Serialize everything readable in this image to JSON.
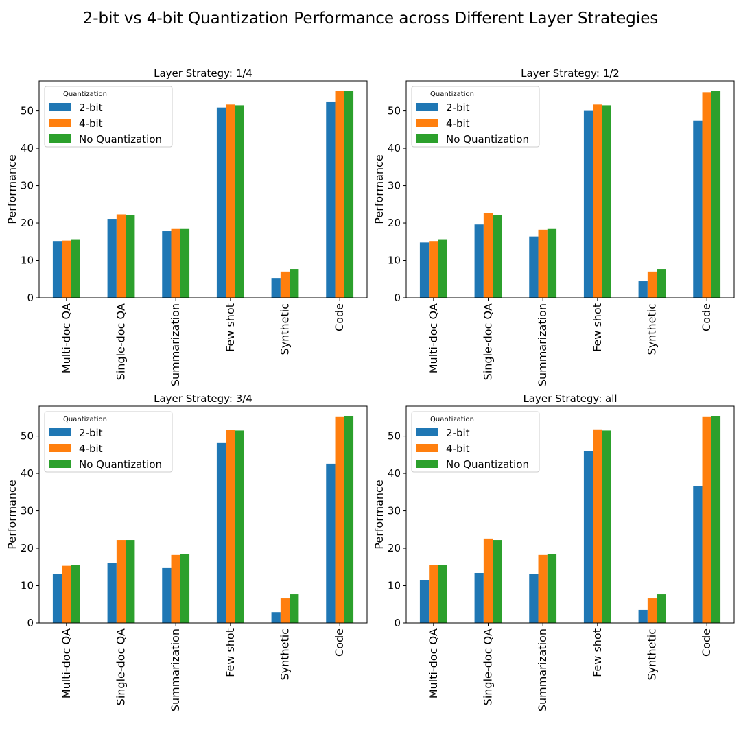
{
  "figure": {
    "title": "2-bit vs 4-bit Quantization Performance across Different Layer Strategies"
  },
  "colors": {
    "2-bit": "#1f77b4",
    "4-bit": "#ff7f0e",
    "No Quantization": "#2ca02c"
  },
  "chart_data": [
    {
      "type": "bar",
      "title": "Layer Strategy: 1/4",
      "xlabel": "",
      "ylabel": "Performance",
      "ylim": [
        0,
        58
      ],
      "yticks": [
        0,
        10,
        20,
        30,
        40,
        50
      ],
      "legend": {
        "title": "Quantization",
        "placement": "top-left"
      },
      "categories": [
        "Multi-doc QA",
        "Single-doc QA",
        "Summarization",
        "Few shot",
        "Synthetic",
        "Code"
      ],
      "series": [
        {
          "name": "2-bit",
          "values": [
            15.2,
            21.1,
            17.8,
            50.9,
            5.3,
            52.5
          ]
        },
        {
          "name": "4-bit",
          "values": [
            15.3,
            22.3,
            18.4,
            51.7,
            7.0,
            55.3
          ]
        },
        {
          "name": "No Quantization",
          "values": [
            15.5,
            22.2,
            18.4,
            51.5,
            7.7,
            55.3
          ]
        }
      ]
    },
    {
      "type": "bar",
      "title": "Layer Strategy: 1/2",
      "xlabel": "",
      "ylabel": "Performance",
      "ylim": [
        0,
        58
      ],
      "yticks": [
        0,
        10,
        20,
        30,
        40,
        50
      ],
      "legend": {
        "title": "Quantization",
        "placement": "top-left"
      },
      "categories": [
        "Multi-doc QA",
        "Single-doc QA",
        "Summarization",
        "Few shot",
        "Synthetic",
        "Code"
      ],
      "series": [
        {
          "name": "2-bit",
          "values": [
            14.8,
            19.6,
            16.4,
            50.0,
            4.4,
            47.4
          ]
        },
        {
          "name": "4-bit",
          "values": [
            15.2,
            22.6,
            18.2,
            51.7,
            7.0,
            55.0
          ]
        },
        {
          "name": "No Quantization",
          "values": [
            15.5,
            22.2,
            18.4,
            51.5,
            7.7,
            55.3
          ]
        }
      ]
    },
    {
      "type": "bar",
      "title": "Layer Strategy: 3/4",
      "xlabel": "",
      "ylabel": "Performance",
      "ylim": [
        0,
        58
      ],
      "yticks": [
        0,
        10,
        20,
        30,
        40,
        50
      ],
      "legend": {
        "title": "Quantization",
        "placement": "top-left"
      },
      "categories": [
        "Multi-doc QA",
        "Single-doc QA",
        "Summarization",
        "Few shot",
        "Synthetic",
        "Code"
      ],
      "series": [
        {
          "name": "2-bit",
          "values": [
            13.2,
            16.0,
            14.7,
            48.3,
            2.9,
            42.6
          ]
        },
        {
          "name": "4-bit",
          "values": [
            15.3,
            22.2,
            18.2,
            51.6,
            6.6,
            55.1
          ]
        },
        {
          "name": "No Quantization",
          "values": [
            15.5,
            22.2,
            18.4,
            51.5,
            7.7,
            55.3
          ]
        }
      ]
    },
    {
      "type": "bar",
      "title": "Layer Strategy: all",
      "xlabel": "",
      "ylabel": "Performance",
      "ylim": [
        0,
        58
      ],
      "yticks": [
        0,
        10,
        20,
        30,
        40,
        50
      ],
      "legend": {
        "title": "Quantization",
        "placement": "top-left"
      },
      "categories": [
        "Multi-doc QA",
        "Single-doc QA",
        "Summarization",
        "Few shot",
        "Synthetic",
        "Code"
      ],
      "series": [
        {
          "name": "2-bit",
          "values": [
            11.4,
            13.4,
            13.1,
            45.9,
            3.5,
            36.7
          ]
        },
        {
          "name": "4-bit",
          "values": [
            15.5,
            22.6,
            18.2,
            51.8,
            6.6,
            55.1
          ]
        },
        {
          "name": "No Quantization",
          "values": [
            15.5,
            22.2,
            18.4,
            51.5,
            7.7,
            55.3
          ]
        }
      ]
    }
  ]
}
